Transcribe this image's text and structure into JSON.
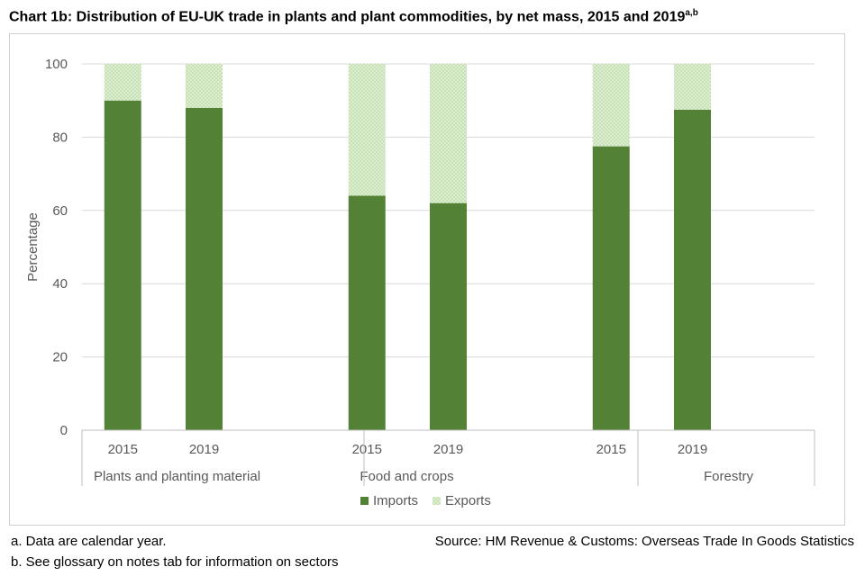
{
  "title": "Chart 1b: Distribution of EU-UK trade in plants and plant commodities, by net mass, 2015 and 2019",
  "title_superscript": "a,b",
  "notes": [
    "a. Data are calendar year.",
    "b. See glossary on notes tab for information on sectors"
  ],
  "source": "Source: HM Revenue & Customs: Overseas Trade In Goods Statistics",
  "colors": {
    "imports": "#538135",
    "exports": "#c5e0b4",
    "gridline": "#d9d9d9",
    "axis": "#bfbfbf"
  },
  "chart_data": {
    "type": "bar",
    "stacked": true,
    "ylabel": "Percentage",
    "ylim": [
      0,
      100
    ],
    "yticks": [
      0,
      20,
      40,
      60,
      80,
      100
    ],
    "grid": true,
    "legend_position": "bottom",
    "groups": [
      {
        "label": "Plants and planting material",
        "categories": [
          "2015",
          "2019"
        ]
      },
      {
        "label": "Food and crops",
        "categories": [
          "2015",
          "2019"
        ]
      },
      {
        "label": "Forestry",
        "categories": [
          "2015",
          "2019"
        ]
      }
    ],
    "series": [
      {
        "name": "Imports",
        "values": [
          90,
          88,
          64,
          62,
          77.5,
          87.5
        ]
      },
      {
        "name": "Exports",
        "values": [
          10,
          12,
          36,
          38,
          22.5,
          12.5
        ]
      }
    ]
  }
}
